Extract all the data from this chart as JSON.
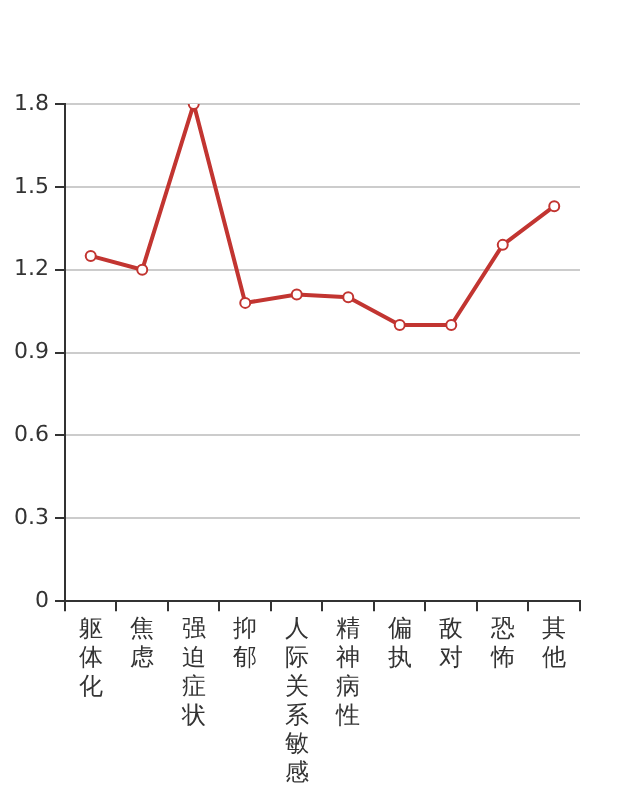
{
  "chart_data": {
    "type": "line",
    "categories": [
      "躯体化",
      "焦虑",
      "强迫症状",
      "抑郁",
      "人际关系敏感",
      "精神病性",
      "偏执",
      "敌对",
      "恐怖",
      "其他"
    ],
    "series": [
      {
        "color": "#c23531",
        "values": [
          1.25,
          1.2,
          1.8,
          1.08,
          1.11,
          1.1,
          1.0,
          1.0,
          1.29,
          1.43
        ]
      }
    ],
    "ylim": [
      0,
      1.8
    ],
    "yticks": [
      0,
      0.3,
      0.6,
      0.9,
      1.2,
      1.5,
      1.8
    ],
    "grid": "y",
    "marker": "circle",
    "line_style": "solid",
    "legend": false
  }
}
